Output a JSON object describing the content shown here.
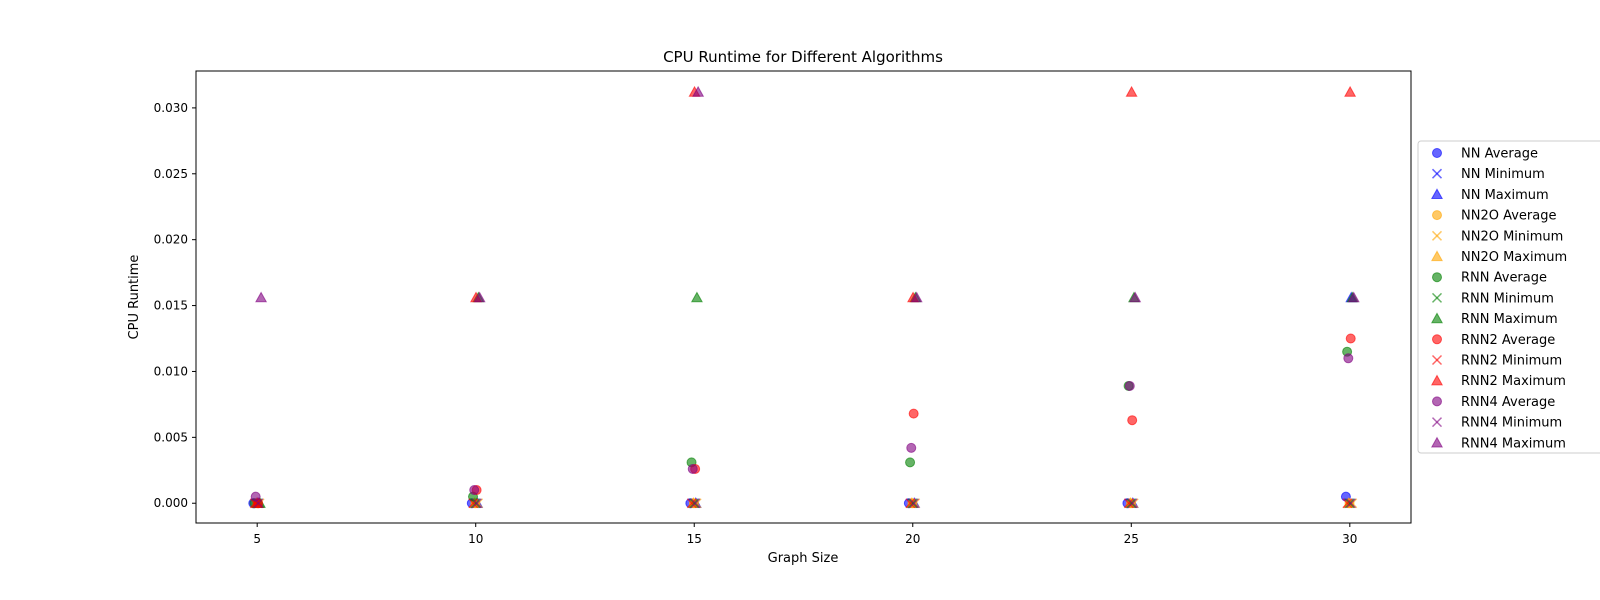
{
  "chart_data": {
    "type": "scatter",
    "title": "CPU Runtime for Different Algorithms",
    "xlabel": "Graph Size",
    "ylabel": "CPU Runtime",
    "xlim": [
      3.6,
      31.4
    ],
    "ylim": [
      -0.0015,
      0.0328
    ],
    "xticks": [
      5,
      10,
      15,
      20,
      25,
      30
    ],
    "yticks": [
      0.0,
      0.005,
      0.01,
      0.015,
      0.02,
      0.025,
      0.03
    ],
    "ytick_labels": [
      "0.000",
      "0.005",
      "0.010",
      "0.015",
      "0.020",
      "0.025",
      "0.030"
    ],
    "grid": false,
    "legend_position": "right",
    "series": [
      {
        "name": "NN Average",
        "color": "#0000ff",
        "marker": "circle",
        "x": [
          5,
          10,
          15,
          20,
          25,
          30
        ],
        "y": [
          0.0,
          0.0,
          0.0,
          0.0,
          0.0,
          0.0005
        ]
      },
      {
        "name": "NN Minimum",
        "color": "#0000ff",
        "marker": "x",
        "x": [
          5,
          10,
          15,
          20,
          25,
          30
        ],
        "y": [
          0.0,
          0.0,
          0.0,
          0.0,
          0.0,
          0.0
        ]
      },
      {
        "name": "NN Maximum",
        "color": "#0000ff",
        "marker": "triangle",
        "x": [
          5,
          10,
          15,
          20,
          25,
          30
        ],
        "y": [
          0.0,
          0.0,
          0.0,
          0.0,
          0.0,
          0.0156
        ]
      },
      {
        "name": "NN2O Average",
        "color": "#ffa500",
        "marker": "circle",
        "x": [
          5,
          10,
          15,
          20,
          25,
          30
        ],
        "y": [
          0.0,
          0.0,
          0.0,
          0.0,
          0.0,
          0.0
        ]
      },
      {
        "name": "NN2O Minimum",
        "color": "#ffa500",
        "marker": "x",
        "x": [
          5,
          10,
          15,
          20,
          25,
          30
        ],
        "y": [
          0.0,
          0.0,
          0.0,
          0.0,
          0.0,
          0.0
        ]
      },
      {
        "name": "NN2O Maximum",
        "color": "#ffa500",
        "marker": "triangle",
        "x": [
          5,
          10,
          15,
          20,
          25,
          30
        ],
        "y": [
          0.0,
          0.0,
          0.0,
          0.0,
          0.0,
          0.0
        ]
      },
      {
        "name": "RNN Average",
        "color": "#008000",
        "marker": "circle",
        "x": [
          5,
          10,
          15,
          20,
          25,
          30
        ],
        "y": [
          0.0,
          0.0005,
          0.0031,
          0.0031,
          0.0089,
          0.0115
        ]
      },
      {
        "name": "RNN Minimum",
        "color": "#008000",
        "marker": "x",
        "x": [
          5,
          10,
          15,
          20,
          25,
          30
        ],
        "y": [
          0.0,
          0.0,
          0.0,
          0.0,
          0.0,
          0.0
        ]
      },
      {
        "name": "RNN Maximum",
        "color": "#008000",
        "marker": "triangle",
        "x": [
          5,
          10,
          15,
          20,
          25,
          30
        ],
        "y": [
          0.0,
          0.0156,
          0.0156,
          0.0156,
          0.0156,
          0.0156
        ]
      },
      {
        "name": "RNN2 Average",
        "color": "#ff0000",
        "marker": "circle",
        "x": [
          5,
          10,
          15,
          20,
          25,
          30
        ],
        "y": [
          0.0,
          0.001,
          0.0026,
          0.0068,
          0.0063,
          0.0125
        ]
      },
      {
        "name": "RNN2 Minimum",
        "color": "#ff0000",
        "marker": "x",
        "x": [
          5,
          10,
          15,
          20,
          25,
          30
        ],
        "y": [
          0.0,
          0.0,
          0.0,
          0.0,
          0.0,
          0.0
        ]
      },
      {
        "name": "RNN2 Maximum",
        "color": "#ff0000",
        "marker": "triangle",
        "x": [
          5,
          10,
          15,
          20,
          25,
          30
        ],
        "y": [
          0.0,
          0.0156,
          0.0312,
          0.0156,
          0.0312,
          0.0312
        ]
      },
      {
        "name": "RNN4 Average",
        "color": "#800080",
        "marker": "circle",
        "x": [
          5,
          10,
          15,
          20,
          25,
          30
        ],
        "y": [
          0.0005,
          0.001,
          0.0026,
          0.0042,
          0.0089,
          0.011
        ]
      },
      {
        "name": "RNN4 Minimum",
        "color": "#800080",
        "marker": "x",
        "x": [
          5,
          10,
          15,
          20,
          25,
          30
        ],
        "y": [
          0.0,
          0.0,
          0.0,
          0.0,
          0.0,
          0.0
        ]
      },
      {
        "name": "RNN4 Maximum",
        "color": "#800080",
        "marker": "triangle",
        "x": [
          5,
          10,
          15,
          20,
          25,
          30
        ],
        "y": [
          0.0156,
          0.0156,
          0.0312,
          0.0156,
          0.0156,
          0.0156
        ]
      }
    ]
  }
}
